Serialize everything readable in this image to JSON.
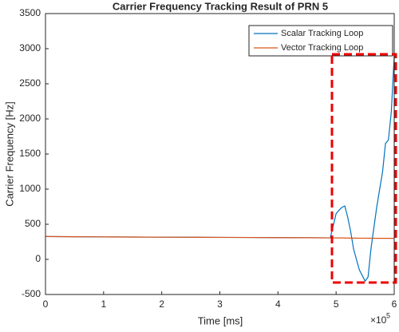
{
  "chart_data": {
    "type": "line",
    "title": "Carrier Frequency Tracking Result of PRN 5",
    "x_label": "Time [ms]",
    "y_label": "Carrier Frequency [Hz]",
    "x_multiplier": "×10",
    "x_multiplier_exp": "5",
    "x": [
      0,
      50000,
      100000,
      150000,
      200000,
      250000,
      300000,
      350000,
      400000,
      450000,
      490000,
      500000,
      505000,
      510000,
      515000,
      520000,
      525000,
      530000,
      540000,
      550000,
      555000,
      560000,
      570000,
      580000,
      585000,
      590000,
      595000,
      600000
    ],
    "series": [
      {
        "name": "Scalar Tracking Loop",
        "color": "#0072bd",
        "values": [
          325,
          322,
          320,
          318,
          316,
          315,
          313,
          312,
          310,
          308,
          306,
          650,
          700,
          740,
          760,
          600,
          400,
          150,
          -150,
          -310,
          -250,
          150,
          750,
          1250,
          1650,
          1700,
          2100,
          2900
        ]
      },
      {
        "name": "Vector Tracking Loop",
        "color": "#d95319",
        "values": [
          325,
          322,
          320,
          318,
          316,
          315,
          313,
          312,
          310,
          308,
          306,
          305,
          305,
          305,
          304,
          304,
          303,
          303,
          302,
          302,
          301,
          301,
          300,
          300,
          300,
          300,
          300,
          300
        ]
      }
    ],
    "xlim": [
      0,
      600000
    ],
    "xticks": [
      {
        "value": 0,
        "label": "0"
      },
      {
        "value": 100000,
        "label": "1"
      },
      {
        "value": 200000,
        "label": "2"
      },
      {
        "value": 300000,
        "label": "3"
      },
      {
        "value": 400000,
        "label": "4"
      },
      {
        "value": 500000,
        "label": "5"
      },
      {
        "value": 600000,
        "label": "6"
      }
    ],
    "ylim": [
      -500,
      3500
    ],
    "yticks": [
      -500,
      0,
      500,
      1000,
      1500,
      2000,
      2500,
      3000,
      3500
    ],
    "legend": "upper right",
    "grid": false
  }
}
